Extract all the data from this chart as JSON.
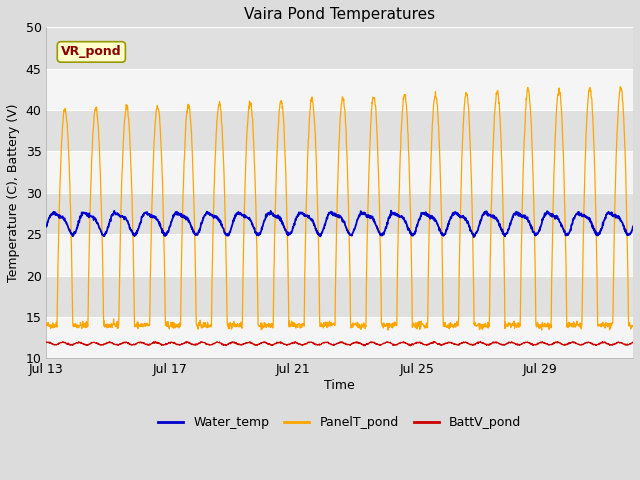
{
  "title": "Vaira Pond Temperatures",
  "xlabel": "Time",
  "ylabel": "Temperature (C), Battery (V)",
  "ylim": [
    10,
    50
  ],
  "yticks": [
    10,
    15,
    20,
    25,
    30,
    35,
    40,
    45,
    50
  ],
  "xtick_labels": [
    "Jul 13",
    "Jul 17",
    "Jul 21",
    "Jul 25",
    "Jul 29"
  ],
  "xtick_positions": [
    0,
    4,
    8,
    12,
    16
  ],
  "legend_labels": [
    "Water_temp",
    "PanelT_pond",
    "BattV_pond"
  ],
  "water_temp_color": "#0000CC",
  "panel_temp_color": "#FFA500",
  "batt_color": "#CC0000",
  "background_outer": "#DCDCDC",
  "background_inner": "#EBEBEB",
  "band_color_light": "#F5F5F5",
  "band_color_dark": "#E0E0E0",
  "annotation_text": "VR_pond",
  "annotation_color": "#8B0000",
  "annotation_bg": "#FFFFCC",
  "annotation_edge": "#999900",
  "n_days": 19,
  "n_points_per_day": 96
}
